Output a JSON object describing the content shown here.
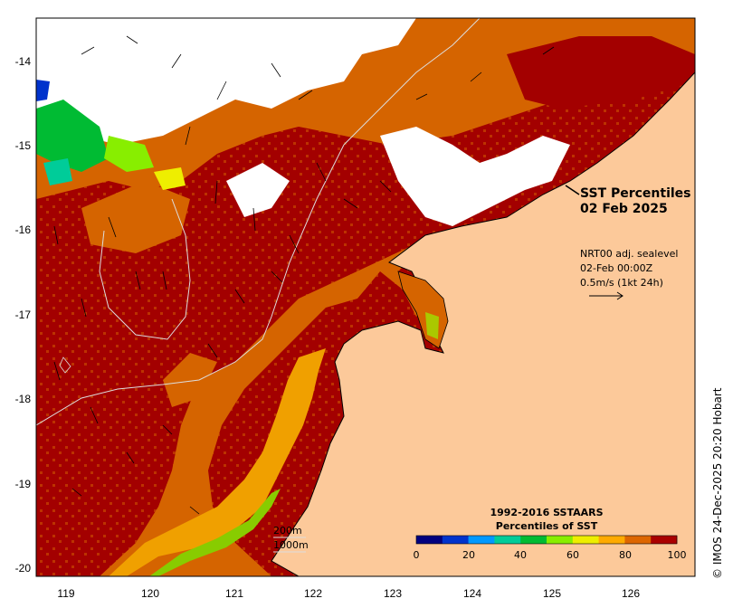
{
  "map": {
    "title_line1": "SST Percentiles",
    "title_line2": "02 Feb 2025",
    "info_line1": "NRT00 adj. sealevel",
    "info_line2": "02-Feb 00:00Z",
    "info_line3": "0.5m/s (1kt 24h)",
    "contour_labels": [
      "200m",
      "1000m"
    ],
    "legend_title_line1": "1992-2016 SSTAARS",
    "legend_title_line2": "Percentiles of SST",
    "legend_ticks": [
      "0",
      "20",
      "40",
      "60",
      "80",
      "100"
    ],
    "legend_colors": [
      "#00007f",
      "#0033cc",
      "#0099ff",
      "#00cc99",
      "#00bb33",
      "#88ee00",
      "#eeee00",
      "#ffaa00",
      "#dd6600",
      "#aa0000"
    ],
    "x_ticks": [
      "119",
      "120",
      "121",
      "122",
      "123",
      "124",
      "125",
      "126"
    ],
    "y_ticks": [
      "-14",
      "-15",
      "-16",
      "-17",
      "-18",
      "-19",
      "-20"
    ],
    "credit": "© IMOS 24-Dec-2025 20:20 Hobart",
    "colors": {
      "land": "#fcc99a",
      "sea_high": "#a30000",
      "sea_mid": "#d56400",
      "cloud": "#ffffff"
    }
  }
}
